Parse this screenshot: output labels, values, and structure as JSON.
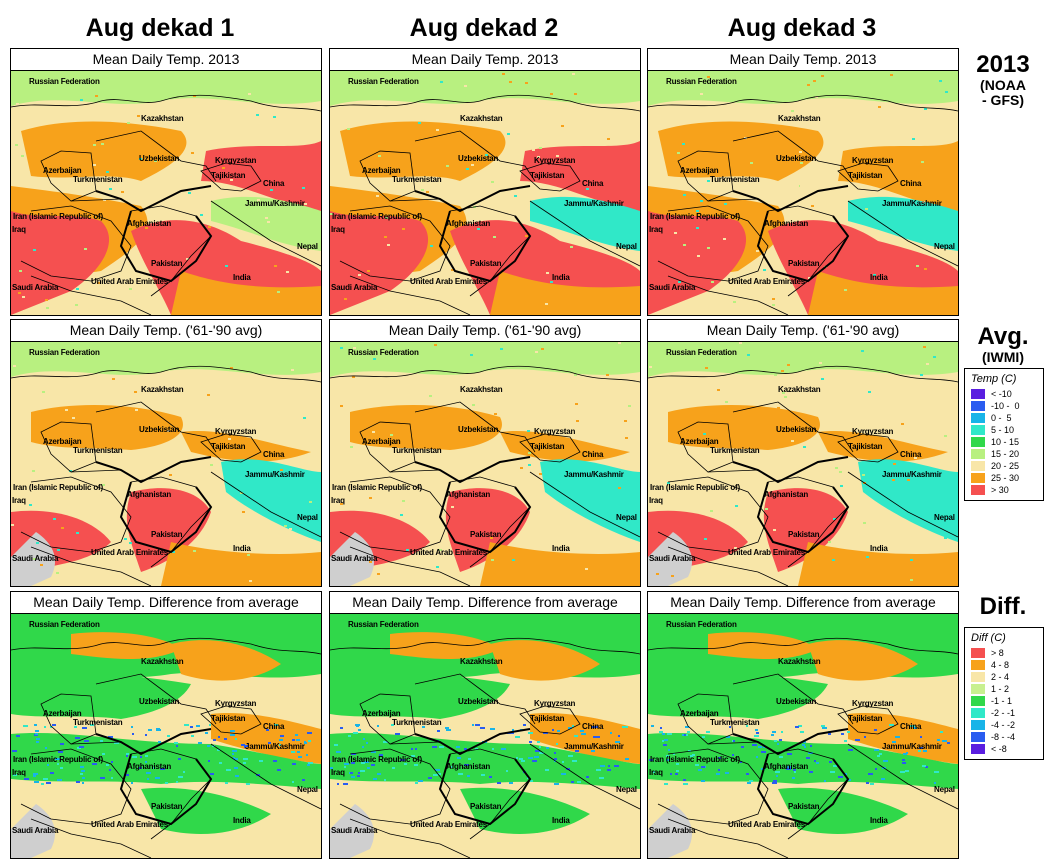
{
  "columns": [
    "Aug dekad 1",
    "Aug dekad 2",
    "Aug dekad 3"
  ],
  "rows": [
    {
      "panel_title": "Mean Daily Temp. 2013",
      "label": "2013",
      "sublabel": "(NOAA\n- GFS)"
    },
    {
      "panel_title": "Mean Daily Temp. ('61-'90 avg)",
      "label": "Avg.",
      "sublabel": "(IWMI)"
    },
    {
      "panel_title": "Mean Daily Temp. Difference from average",
      "label": "Diff.",
      "sublabel": ""
    }
  ],
  "map_labels": {
    "russia": "Russian Federation",
    "kazakhstan": "Kazakhstan",
    "uzbekistan": "Uzbekistan",
    "kyrgyzstan": "Kyrgyzstan",
    "azerbaijan": "Azerbaijan",
    "turkmenistan": "Turkmenistan",
    "tajikistan": "Tajikistan",
    "china": "China",
    "iran": "Iran (Islamic Republic of)",
    "jammu": "Jammu/Kashmir",
    "afghanistan": "Afghanistan",
    "iraq": "Iraq",
    "nepal": "Nepal",
    "pakistan": "Pakistan",
    "india": "India",
    "uae": "United Arab Emirates",
    "saudi": "Saudi Arabia"
  },
  "temp_legend": {
    "title": "Temp (C)",
    "items": [
      {
        "label": "< -10",
        "color": "#5a1ee0"
      },
      {
        "label": "-10 -  0",
        "color": "#2a5cf0"
      },
      {
        "label": "0 -  5",
        "color": "#18b4e8"
      },
      {
        "label": "5 - 10",
        "color": "#30e8c8"
      },
      {
        "label": "10 - 15",
        "color": "#30d84a"
      },
      {
        "label": "15 - 20",
        "color": "#b8f080"
      },
      {
        "label": "20 - 25",
        "color": "#f8e6a8"
      },
      {
        "label": "25 - 30",
        "color": "#f7a21b"
      },
      {
        "label": "> 30",
        "color": "#f55050"
      }
    ]
  },
  "diff_legend": {
    "title": "Diff (C)",
    "items": [
      {
        "label": "> 8",
        "color": "#f55050"
      },
      {
        "label": "4 - 8",
        "color": "#f7a21b"
      },
      {
        "label": "2 - 4",
        "color": "#f8e6a8"
      },
      {
        "label": "1 - 2",
        "color": "#c8f090"
      },
      {
        "label": "-1 - 1",
        "color": "#30d84a"
      },
      {
        "label": "-2 - -1",
        "color": "#30e8c8"
      },
      {
        "label": "-4 - -2",
        "color": "#18b4e8"
      },
      {
        "label": "-8 - -4",
        "color": "#2a5cf0"
      },
      {
        "label": "< -8",
        "color": "#5a1ee0"
      }
    ]
  }
}
